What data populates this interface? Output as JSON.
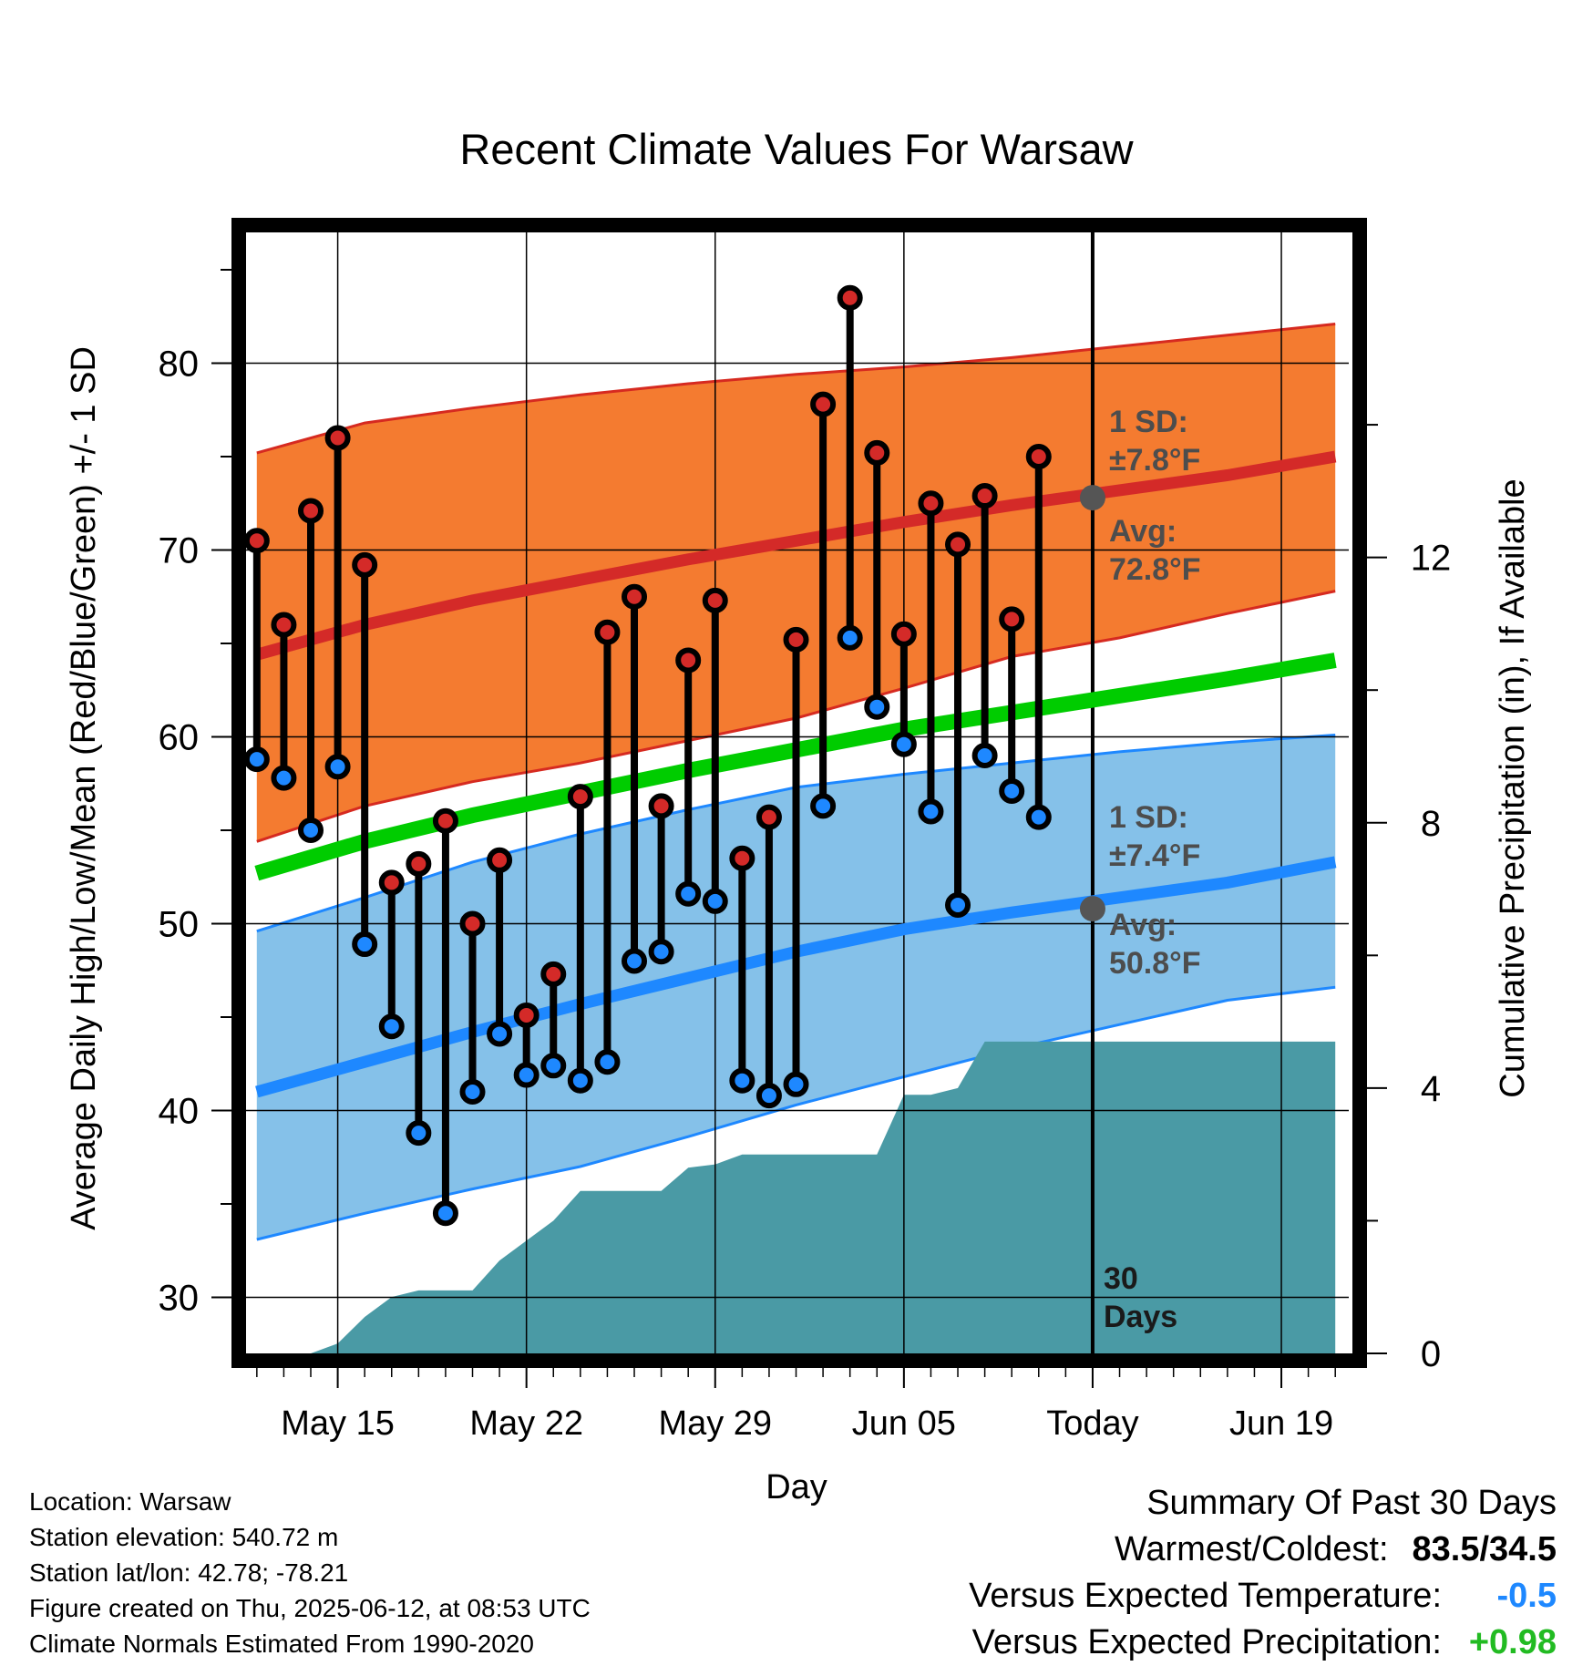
{
  "chart_data": {
    "type": "line",
    "title": "Recent Climate Values For Warsaw",
    "xlabel": "Day",
    "ylabel": "Average Daily High/Low/Mean (Red/Blue/Green) +/- 1 SD",
    "ylabel_right": "Cumulative Precipitation (in), If Available",
    "x_ticks": [
      {
        "day": 4,
        "label": "May 15"
      },
      {
        "day": 11,
        "label": "May 22"
      },
      {
        "day": 18,
        "label": "May 29"
      },
      {
        "day": 25,
        "label": "Jun 05"
      },
      {
        "day": 32,
        "label": "Today"
      },
      {
        "day": 39,
        "label": "Jun 19"
      }
    ],
    "xlim": [
      0.6,
      41.5
    ],
    "ylim": [
      27,
      87
    ],
    "y_ticks": [
      30,
      40,
      50,
      60,
      70,
      80
    ],
    "y2lim": [
      0,
      16.9
    ],
    "y2_ticks": [
      0,
      4,
      8,
      12
    ],
    "grid": true,
    "colors": {
      "high_band": "#f47b30",
      "high_band_edge": "#d62a20",
      "high_mean": "#d42a28",
      "low_band": "#85c1e9",
      "low_band_edge": "#1e88ff",
      "low_mean": "#1e88ff",
      "mean": "#00cc00",
      "precip": "#4a9aa5",
      "high_dot": "#d42a28",
      "low_dot": "#1e88ff",
      "today_marker": "#555555",
      "annotation": "#4d4d4d",
      "precip_anomaly": "#22bb22",
      "temp_anomaly": "#1e88ff"
    },
    "normals": {
      "days": [
        1,
        5,
        9,
        13,
        17,
        21,
        25,
        29,
        33,
        37,
        41
      ],
      "high_mean": [
        64.4,
        66.0,
        67.3,
        68.4,
        69.5,
        70.5,
        71.5,
        72.4,
        73.2,
        74.0,
        75.0
      ],
      "high_upper": [
        75.2,
        76.8,
        77.6,
        78.3,
        78.9,
        79.4,
        79.8,
        80.3,
        80.9,
        81.5,
        82.1
      ],
      "high_lower": [
        54.4,
        56.3,
        57.6,
        58.6,
        59.8,
        61.0,
        62.6,
        64.3,
        65.3,
        66.6,
        67.8
      ],
      "low_mean": [
        41.0,
        42.6,
        44.2,
        45.7,
        47.1,
        48.5,
        49.7,
        50.6,
        51.4,
        52.2,
        53.3
      ],
      "low_upper": [
        49.6,
        51.4,
        53.3,
        54.8,
        56.1,
        57.3,
        58.0,
        58.6,
        59.2,
        59.7,
        60.1
      ],
      "low_lower": [
        33.1,
        34.5,
        35.8,
        37.0,
        38.6,
        40.3,
        41.8,
        43.3,
        44.6,
        45.9,
        46.6
      ],
      "mean": [
        52.7,
        54.4,
        55.8,
        57.0,
        58.2,
        59.3,
        60.4,
        61.3,
        62.2,
        63.1,
        64.1
      ]
    },
    "series": [
      {
        "name": "High",
        "days": [
          1,
          2,
          3,
          4,
          5,
          6,
          7,
          8,
          9,
          10,
          11,
          12,
          13,
          14,
          15,
          16,
          17,
          18,
          19,
          20,
          21,
          22,
          23,
          24,
          25,
          26,
          27,
          28,
          29,
          30,
          31
        ],
        "values": [
          70.5,
          66.0,
          72.1,
          76.0,
          69.2,
          52.2,
          53.2,
          55.5,
          50.0,
          53.4,
          45.1,
          47.3,
          56.8,
          65.6,
          67.5,
          56.3,
          64.1,
          67.3,
          53.5,
          55.7,
          65.2,
          77.8,
          83.5,
          75.2,
          65.5,
          72.5,
          70.3,
          72.9,
          66.3,
          75.0,
          null
        ]
      },
      {
        "name": "Low",
        "days": [
          1,
          2,
          3,
          4,
          5,
          6,
          7,
          8,
          9,
          10,
          11,
          12,
          13,
          14,
          15,
          16,
          17,
          18,
          19,
          20,
          21,
          22,
          23,
          24,
          25,
          26,
          27,
          28,
          29,
          30,
          31
        ],
        "values": [
          58.8,
          57.8,
          55.0,
          58.4,
          48.9,
          44.5,
          38.8,
          34.5,
          41.0,
          44.1,
          41.9,
          42.4,
          41.6,
          42.6,
          48.0,
          48.5,
          51.6,
          51.2,
          41.6,
          40.8,
          41.4,
          56.3,
          65.3,
          61.6,
          59.6,
          56.0,
          51.0,
          59.0,
          57.1,
          55.7,
          null
        ]
      },
      {
        "name": "Cumulative Precipitation",
        "days": [
          1,
          2,
          3,
          4,
          5,
          6,
          7,
          8,
          9,
          10,
          11,
          12,
          13,
          14,
          15,
          16,
          17,
          18,
          19,
          20,
          21,
          22,
          23,
          24,
          25,
          26,
          27,
          28,
          29,
          30,
          31,
          32,
          33,
          34,
          35,
          36,
          37,
          38,
          39,
          40,
          41
        ],
        "values": [
          0.0,
          0.0,
          0.0,
          0.15,
          0.55,
          0.85,
          0.95,
          0.95,
          0.95,
          1.4,
          1.7,
          2.0,
          2.45,
          2.45,
          2.45,
          2.45,
          2.8,
          2.85,
          3.0,
          3.0,
          3.0,
          3.0,
          3.0,
          3.0,
          3.9,
          3.9,
          4.0,
          4.7,
          4.7,
          4.7,
          4.7,
          4.7,
          4.7,
          4.7,
          4.7,
          4.7,
          4.7,
          4.7,
          4.7,
          4.7,
          4.7
        ]
      }
    ],
    "today_day": 32,
    "annotations": {
      "high_sd": "1 SD:",
      "high_sd_value": "±7.8°F",
      "high_avg": "Avg:",
      "high_avg_value": "72.8°F",
      "low_sd": "1 SD:",
      "low_sd_value": "±7.4°F",
      "low_avg": "Avg:",
      "low_avg_value": "50.8°F",
      "today_high": 72.8,
      "today_low": 50.8,
      "days_count": "30",
      "days_label": "Days"
    }
  },
  "footer": {
    "location": "Location: Warsaw",
    "elevation": "Station elevation: 540.72 m",
    "latlon": "Station lat/lon: 42.78; -78.21",
    "created": "Figure created on Thu, 2025-06-12, at 08:53 UTC",
    "normals": "Climate Normals Estimated From 1990-2020"
  },
  "summary": {
    "title": "Summary Of Past 30 Days",
    "extremes_label": "Warmest/Coldest:",
    "extremes_value": "83.5/34.5",
    "temp_label": "Versus Expected Temperature:",
    "temp_value": "-0.5",
    "precip_label": "Versus Expected Precipitation:",
    "precip_value": "+0.98"
  }
}
